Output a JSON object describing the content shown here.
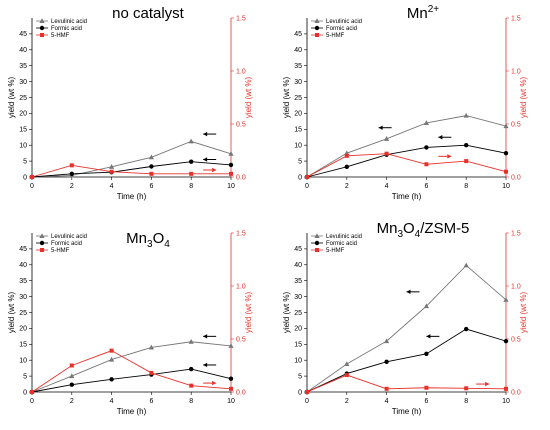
{
  "figure": {
    "colors": {
      "levulinic": "#777777",
      "formic": "#000000",
      "hmf": "#e8302a",
      "right_axis": "#e8302a"
    }
  },
  "chart_data": [
    {
      "type": "line",
      "title": "no catalyst",
      "xlabel": "Time (h)",
      "ylabel": "yield (wt %)",
      "y2label": "yield (wt %)",
      "x": [
        0,
        2,
        4,
        6,
        8,
        10
      ],
      "xticks": [
        "0",
        "2",
        "4",
        "6",
        "8",
        "10"
      ],
      "xlim": [
        0,
        10
      ],
      "ylim": [
        0,
        50
      ],
      "y2lim": [
        0,
        1.5
      ],
      "yticks": [
        "0",
        "5",
        "10",
        "15",
        "20",
        "25",
        "30",
        "35",
        "40",
        "45"
      ],
      "y2ticks": [
        "0.0",
        "0.5",
        "1.0",
        "1.5"
      ],
      "series": [
        {
          "name": "Levulinic acid",
          "axis": "left",
          "marker": "triangle",
          "values": [
            0,
            0.5,
            3.2,
            6.2,
            11.2,
            7.3
          ]
        },
        {
          "name": "Formic acid",
          "axis": "left",
          "marker": "circle",
          "values": [
            0,
            1,
            1.5,
            3.3,
            4.8,
            3.8
          ]
        },
        {
          "name": "5-HMF",
          "axis": "right",
          "marker": "square",
          "values": [
            0,
            0.11,
            0.05,
            0.03,
            0.03,
            0.03
          ]
        }
      ],
      "legend": "top-left"
    },
    {
      "type": "line",
      "title_main": "Mn",
      "title_sup": "2+",
      "xlabel": "Time (h)",
      "ylabel": "yield (wt %)",
      "y2label": "yield (wt %)",
      "x": [
        0,
        2,
        4,
        6,
        8,
        10
      ],
      "xticks": [
        "0",
        "2",
        "4",
        "6",
        "8",
        "10"
      ],
      "xlim": [
        0,
        10
      ],
      "ylim": [
        0,
        50
      ],
      "y2lim": [
        0,
        1.5
      ],
      "yticks": [
        "0",
        "5",
        "10",
        "15",
        "20",
        "25",
        "30",
        "35",
        "40",
        "45"
      ],
      "y2ticks": [
        "0.0",
        "0.5",
        "1.0",
        "1.5"
      ],
      "series": [
        {
          "name": "Levulinic acid",
          "axis": "left",
          "marker": "triangle",
          "values": [
            0,
            7.5,
            12,
            17,
            19.3,
            16
          ]
        },
        {
          "name": "Formic acid",
          "axis": "left",
          "marker": "circle",
          "values": [
            0,
            3.2,
            7,
            9.3,
            10,
            7.5
          ]
        },
        {
          "name": "5-HMF",
          "axis": "right",
          "marker": "square",
          "values": [
            0,
            0.2,
            0.22,
            0.12,
            0.15,
            0.05
          ]
        }
      ],
      "legend": "top-left"
    },
    {
      "type": "line",
      "title_main": "Mn",
      "title_sub1": "3",
      "title_mid": "O",
      "title_sub2": "4",
      "xlabel": "Time (h)",
      "ylabel": "yield (wt %)",
      "y2label": "yield (wt %)",
      "x": [
        0,
        2,
        4,
        6,
        8,
        10
      ],
      "xticks": [
        "0",
        "2",
        "4",
        "6",
        "8",
        "10"
      ],
      "xlim": [
        0,
        10
      ],
      "ylim": [
        0,
        50
      ],
      "y2lim": [
        0,
        1.5
      ],
      "yticks": [
        "0",
        "5",
        "10",
        "15",
        "20",
        "25",
        "30",
        "35",
        "40",
        "45"
      ],
      "y2ticks": [
        "0.0",
        "0.5",
        "1.0",
        "1.5"
      ],
      "series": [
        {
          "name": "Levulinic acid",
          "axis": "left",
          "marker": "triangle",
          "values": [
            0,
            5,
            10.2,
            14,
            15.8,
            14.5
          ]
        },
        {
          "name": "Formic acid",
          "axis": "left",
          "marker": "circle",
          "values": [
            0,
            2.3,
            4,
            5.5,
            7.2,
            4.2
          ]
        },
        {
          "name": "5-HMF",
          "axis": "right",
          "marker": "square",
          "values": [
            0,
            0.25,
            0.39,
            0.18,
            0.06,
            0.03
          ]
        }
      ],
      "legend": "top-left"
    },
    {
      "type": "line",
      "title_main": "Mn",
      "title_sub1": "3",
      "title_mid": "O",
      "title_sub2": "4",
      "title_tail": "/ZSM-5",
      "xlabel": "Time (h)",
      "ylabel": "yield (wt %)",
      "y2label": "yield (wt %)",
      "x": [
        0,
        2,
        4,
        6,
        8,
        10
      ],
      "xticks": [
        "0",
        "2",
        "4",
        "6",
        "8",
        "10"
      ],
      "xlim": [
        0,
        10
      ],
      "ylim": [
        0,
        50
      ],
      "y2lim": [
        0,
        1.5
      ],
      "yticks": [
        "0",
        "5",
        "10",
        "15",
        "20",
        "25",
        "30",
        "35",
        "40",
        "45"
      ],
      "y2ticks": [
        "0.0",
        "0.5",
        "1.0",
        "1.5"
      ],
      "series": [
        {
          "name": "Levulinic acid",
          "axis": "left",
          "marker": "triangle",
          "values": [
            0,
            8.8,
            16,
            27,
            39.8,
            29
          ]
        },
        {
          "name": "Formic acid",
          "axis": "left",
          "marker": "circle",
          "values": [
            0,
            5.8,
            9.5,
            12,
            19.8,
            16
          ]
        },
        {
          "name": "5-HMF",
          "axis": "right",
          "marker": "square",
          "values": [
            0,
            0.16,
            0.03,
            0.04,
            0.035,
            0.03
          ]
        }
      ],
      "legend": "top-left"
    }
  ]
}
